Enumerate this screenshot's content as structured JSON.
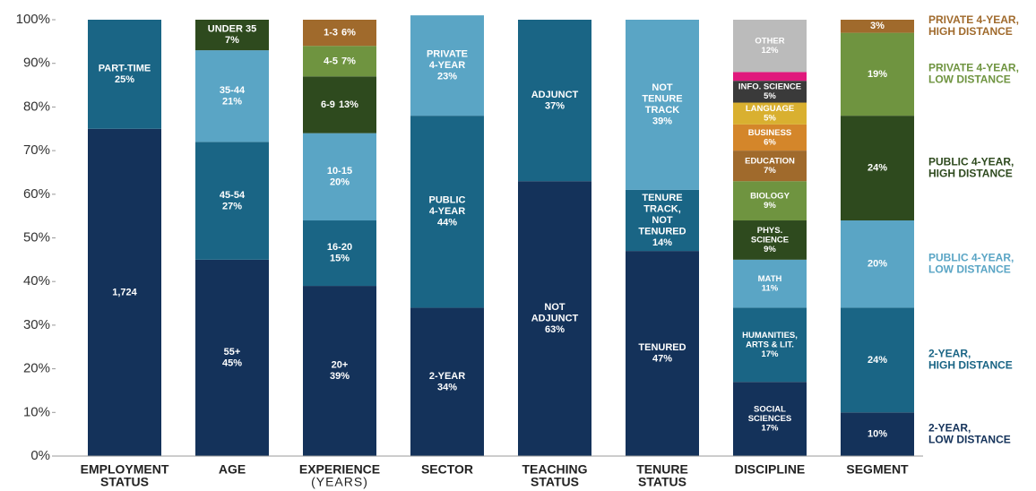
{
  "chart_data": {
    "type": "stacked_bar",
    "ylim": [
      0,
      100
    ],
    "yticks": [
      {
        "value": 0,
        "label": "0%"
      },
      {
        "value": 10,
        "label": "10%"
      },
      {
        "value": 20,
        "label": "20%"
      },
      {
        "value": 30,
        "label": "30%"
      },
      {
        "value": 40,
        "label": "40%"
      },
      {
        "value": 50,
        "label": "50%"
      },
      {
        "value": 60,
        "label": "60%"
      },
      {
        "value": 70,
        "label": "70%"
      },
      {
        "value": 80,
        "label": "80%"
      },
      {
        "value": 90,
        "label": "90%"
      },
      {
        "value": 100,
        "label": "100%"
      }
    ],
    "columns": [
      {
        "category": [
          "EMPLOYMENT",
          "STATUS"
        ],
        "segments": [
          {
            "label": [
              "1,724"
            ],
            "value": 75,
            "color": "#14325a"
          },
          {
            "label": [
              "PART-TIME"
            ],
            "value": 25,
            "value_label": "25%",
            "color": "#1a6585"
          }
        ]
      },
      {
        "category": [
          "AGE"
        ],
        "segments": [
          {
            "label": [
              "55+"
            ],
            "value": 45,
            "value_label": "45%",
            "color": "#14325a"
          },
          {
            "label": [
              "45-54"
            ],
            "value": 27,
            "value_label": "27%",
            "color": "#1a6585"
          },
          {
            "label": [
              "35-44"
            ],
            "value": 21,
            "value_label": "21%",
            "color": "#5aa5c5"
          },
          {
            "label": [
              "UNDER 35"
            ],
            "value": 7,
            "value_label": "7%",
            "color": "#2e4a1e"
          }
        ]
      },
      {
        "category": [
          "EXPERIENCE",
          "(YEARS)"
        ],
        "segments": [
          {
            "label": [
              "20+"
            ],
            "value": 39,
            "value_label": "39%",
            "color": "#14325a"
          },
          {
            "label": [
              "16-20"
            ],
            "value": 15,
            "value_label": "15%",
            "color": "#1a6585"
          },
          {
            "label": [
              "10-15"
            ],
            "value": 20,
            "value_label": "20%",
            "color": "#5aa5c5"
          },
          {
            "label": [
              "6-9"
            ],
            "value": 13,
            "value_label": "13%",
            "color": "#2e4a1e"
          },
          {
            "label": [
              "4-5"
            ],
            "value": 7,
            "value_label": "7%",
            "color": "#6f9440"
          },
          {
            "label": [
              "1-3"
            ],
            "value": 6,
            "value_label": "6%",
            "color": "#a06a2c"
          }
        ]
      },
      {
        "category": [
          "SECTOR"
        ],
        "segments": [
          {
            "label": [
              "2-YEAR"
            ],
            "value": 34,
            "value_label": "34%",
            "color": "#14325a"
          },
          {
            "label": [
              "PUBLIC",
              "4-YEAR"
            ],
            "value": 44,
            "value_label": "44%",
            "color": "#1a6585"
          },
          {
            "label": [
              "PRIVATE",
              "4-YEAR"
            ],
            "value": 23,
            "value_label": "23%",
            "color": "#5aa5c5"
          }
        ]
      },
      {
        "category": [
          "TEACHING",
          "STATUS"
        ],
        "segments": [
          {
            "label": [
              "NOT",
              "ADJUNCT"
            ],
            "value": 63,
            "value_label": "63%",
            "color": "#14325a"
          },
          {
            "label": [
              "ADJUNCT"
            ],
            "value": 37,
            "value_label": "37%",
            "color": "#1a6585"
          }
        ]
      },
      {
        "category": [
          "TENURE",
          "STATUS"
        ],
        "segments": [
          {
            "label": [
              "TENURED"
            ],
            "value": 47,
            "value_label": "47%",
            "color": "#14325a"
          },
          {
            "label": [
              "TENURE",
              "TRACK,",
              "NOT",
              "TENURED"
            ],
            "value": 14,
            "value_label": "14%",
            "color": "#1a6585"
          },
          {
            "label": [
              "NOT",
              "TENURE",
              "TRACK"
            ],
            "value": 39,
            "value_label": "39%",
            "color": "#5aa5c5"
          }
        ]
      },
      {
        "category": [
          "DISCIPLINE"
        ],
        "segments": [
          {
            "label": [
              "SOCIAL",
              "SCIENCES"
            ],
            "value": 17,
            "value_label": "17%",
            "color": "#14325a"
          },
          {
            "label": [
              "HUMANITIES,",
              "ARTS & LIT."
            ],
            "value": 17,
            "value_label": "17%",
            "color": "#1a6585"
          },
          {
            "label": [
              "MATH"
            ],
            "value": 11,
            "value_label": "11%",
            "color": "#5aa5c5"
          },
          {
            "label": [
              "PHYS.",
              "SCIENCE"
            ],
            "value": 9,
            "value_label": "9%",
            "color": "#2e4a1e"
          },
          {
            "label": [
              "BIOLOGY"
            ],
            "value": 9,
            "value_label": "9%",
            "color": "#6f9440"
          },
          {
            "label": [
              "EDUCATION"
            ],
            "value": 7,
            "value_label": "7%",
            "color": "#a06a2c"
          },
          {
            "label": [
              "BUSINESS"
            ],
            "value": 6,
            "value_label": "6%",
            "color": "#d4862a"
          },
          {
            "label": [
              "LANGUAGE"
            ],
            "value": 5,
            "value_label": "5%",
            "color": "#d9b030"
          },
          {
            "label": [
              "INFO. SCIENCE"
            ],
            "value": 5,
            "value_label": "5%",
            "color": "#3a3a3a"
          },
          {
            "value": 2,
            "color": "#e0197c"
          },
          {
            "label": [
              "OTHER"
            ],
            "value": 12,
            "value_label": "12%",
            "color": "#bbbbbb"
          }
        ]
      },
      {
        "category": [
          "SEGMENT"
        ],
        "segments": [
          {
            "name": [
              "2-YEAR,",
              "LOW DISTANCE"
            ],
            "value": 10,
            "value_label": "10%",
            "color": "#14325a"
          },
          {
            "name": [
              "2-YEAR,",
              "HIGH DISTANCE"
            ],
            "value": 24,
            "value_label": "24%",
            "color": "#1a6585"
          },
          {
            "name": [
              "PUBLIC 4-YEAR,",
              "LOW DISTANCE"
            ],
            "value": 20,
            "value_label": "20%",
            "color": "#5aa5c5"
          },
          {
            "name": [
              "PUBLIC 4-YEAR,",
              "HIGH DISTANCE"
            ],
            "value": 24,
            "value_label": "24%",
            "color": "#2e4a1e"
          },
          {
            "name": [
              "PRIVATE 4-YEAR,",
              "LOW DISTANCE"
            ],
            "value": 19,
            "value_label": "19%",
            "color": "#6f9440"
          },
          {
            "name": [
              "PRIVATE 4-YEAR,",
              "HIGH DISTANCE"
            ],
            "value": 3,
            "value_label": "3%",
            "color": "#a06a2c"
          }
        ]
      }
    ]
  }
}
